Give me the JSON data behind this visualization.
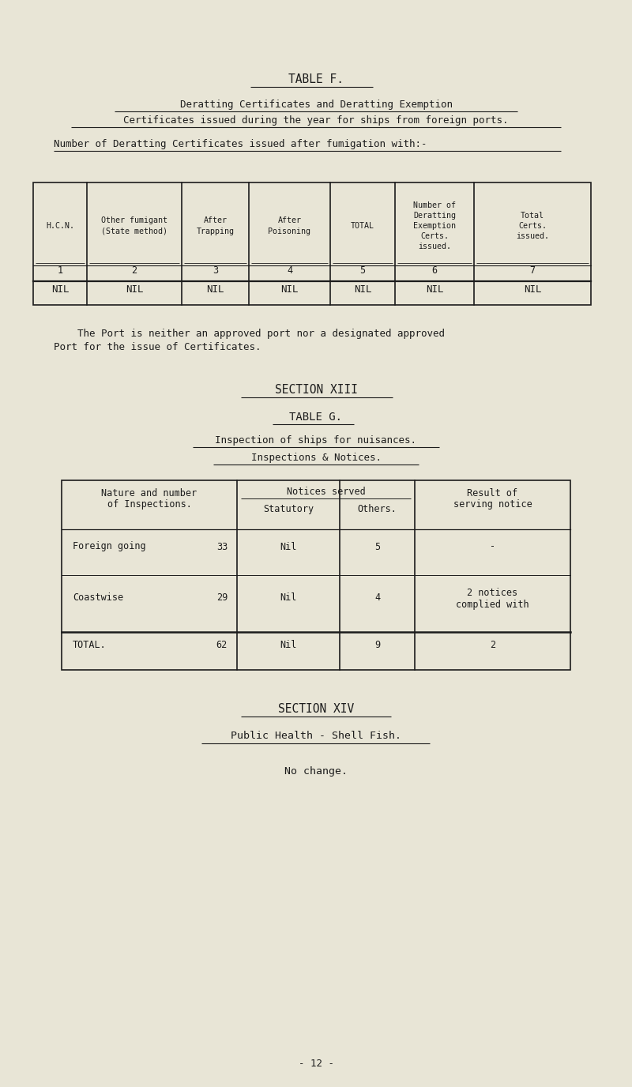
{
  "bg_color": "#e8e5d6",
  "text_color": "#1c1c1c",
  "page_width": 8.0,
  "page_height": 13.76,
  "title_table_f": "TABLE F.",
  "subtitle1": "Deratting Certificates and Deratting Exemption",
  "subtitle2": "Certificates issued during the year for ships from foreign ports.",
  "subtitle3": "Number of Deratting Certificates issued after fumigation with:-",
  "table_f_headers_line1": [
    "H.C.N.",
    "Other fumigant",
    "After",
    "After",
    "TOTAL",
    "Number of",
    "Total"
  ],
  "table_f_headers_line2": [
    "",
    "(State method)",
    "Trapping",
    "Poisoning",
    "",
    "Deratting",
    "Certs."
  ],
  "table_f_headers_line3": [
    "",
    "",
    "",
    "",
    "",
    "Exemption",
    "issued."
  ],
  "table_f_headers_line4": [
    "",
    "",
    "",
    "",
    "",
    "Certs.",
    ""
  ],
  "table_f_headers_line5": [
    "",
    "",
    "",
    "",
    "",
    "issued.",
    ""
  ],
  "table_f_col_nums": [
    "1",
    "2",
    "3",
    "4",
    "5",
    "6",
    "7"
  ],
  "table_f_data": [
    "NIL",
    "NIL",
    "NIL",
    "NIL",
    "NIL",
    "NIL",
    "NIL"
  ],
  "port_note_line1": "    The Port is neither an approved port nor a designated approved",
  "port_note_line2": "Port for the issue of Certificates.",
  "section_xiii": "SECTION XIII",
  "table_g_title": "TABLE G.",
  "table_g_sub1": "Inspection of ships for nuisances.",
  "table_g_sub2": "Inspections & Notices.",
  "table_g_col1_header_line1": "Nature and number",
  "table_g_col1_header_line2": "of Inspections.",
  "table_g_notices_header": "Notices served",
  "table_g_statutory": "Statutory",
  "table_g_others": "Others.",
  "table_g_result_line1": "Result of",
  "table_g_result_line2": "serving notice",
  "table_g_rows": [
    {
      "nature": "Foreign going",
      "count": "33",
      "statutory": "Nil",
      "others": "5",
      "result1": "-",
      "result2": ""
    },
    {
      "nature": "Coastwise",
      "count": "29",
      "statutory": "Nil",
      "others": "4",
      "result1": "2 notices",
      "result2": "complied with"
    }
  ],
  "table_g_total": {
    "nature": "TOTAL.",
    "count": "62",
    "statutory": "Nil",
    "others": "9",
    "result": "2"
  },
  "section_xiv": "SECTION XIV",
  "shell_fish_title": "Public Health - Shell Fish.",
  "no_change": "No change.",
  "page_number": "- 12 -"
}
